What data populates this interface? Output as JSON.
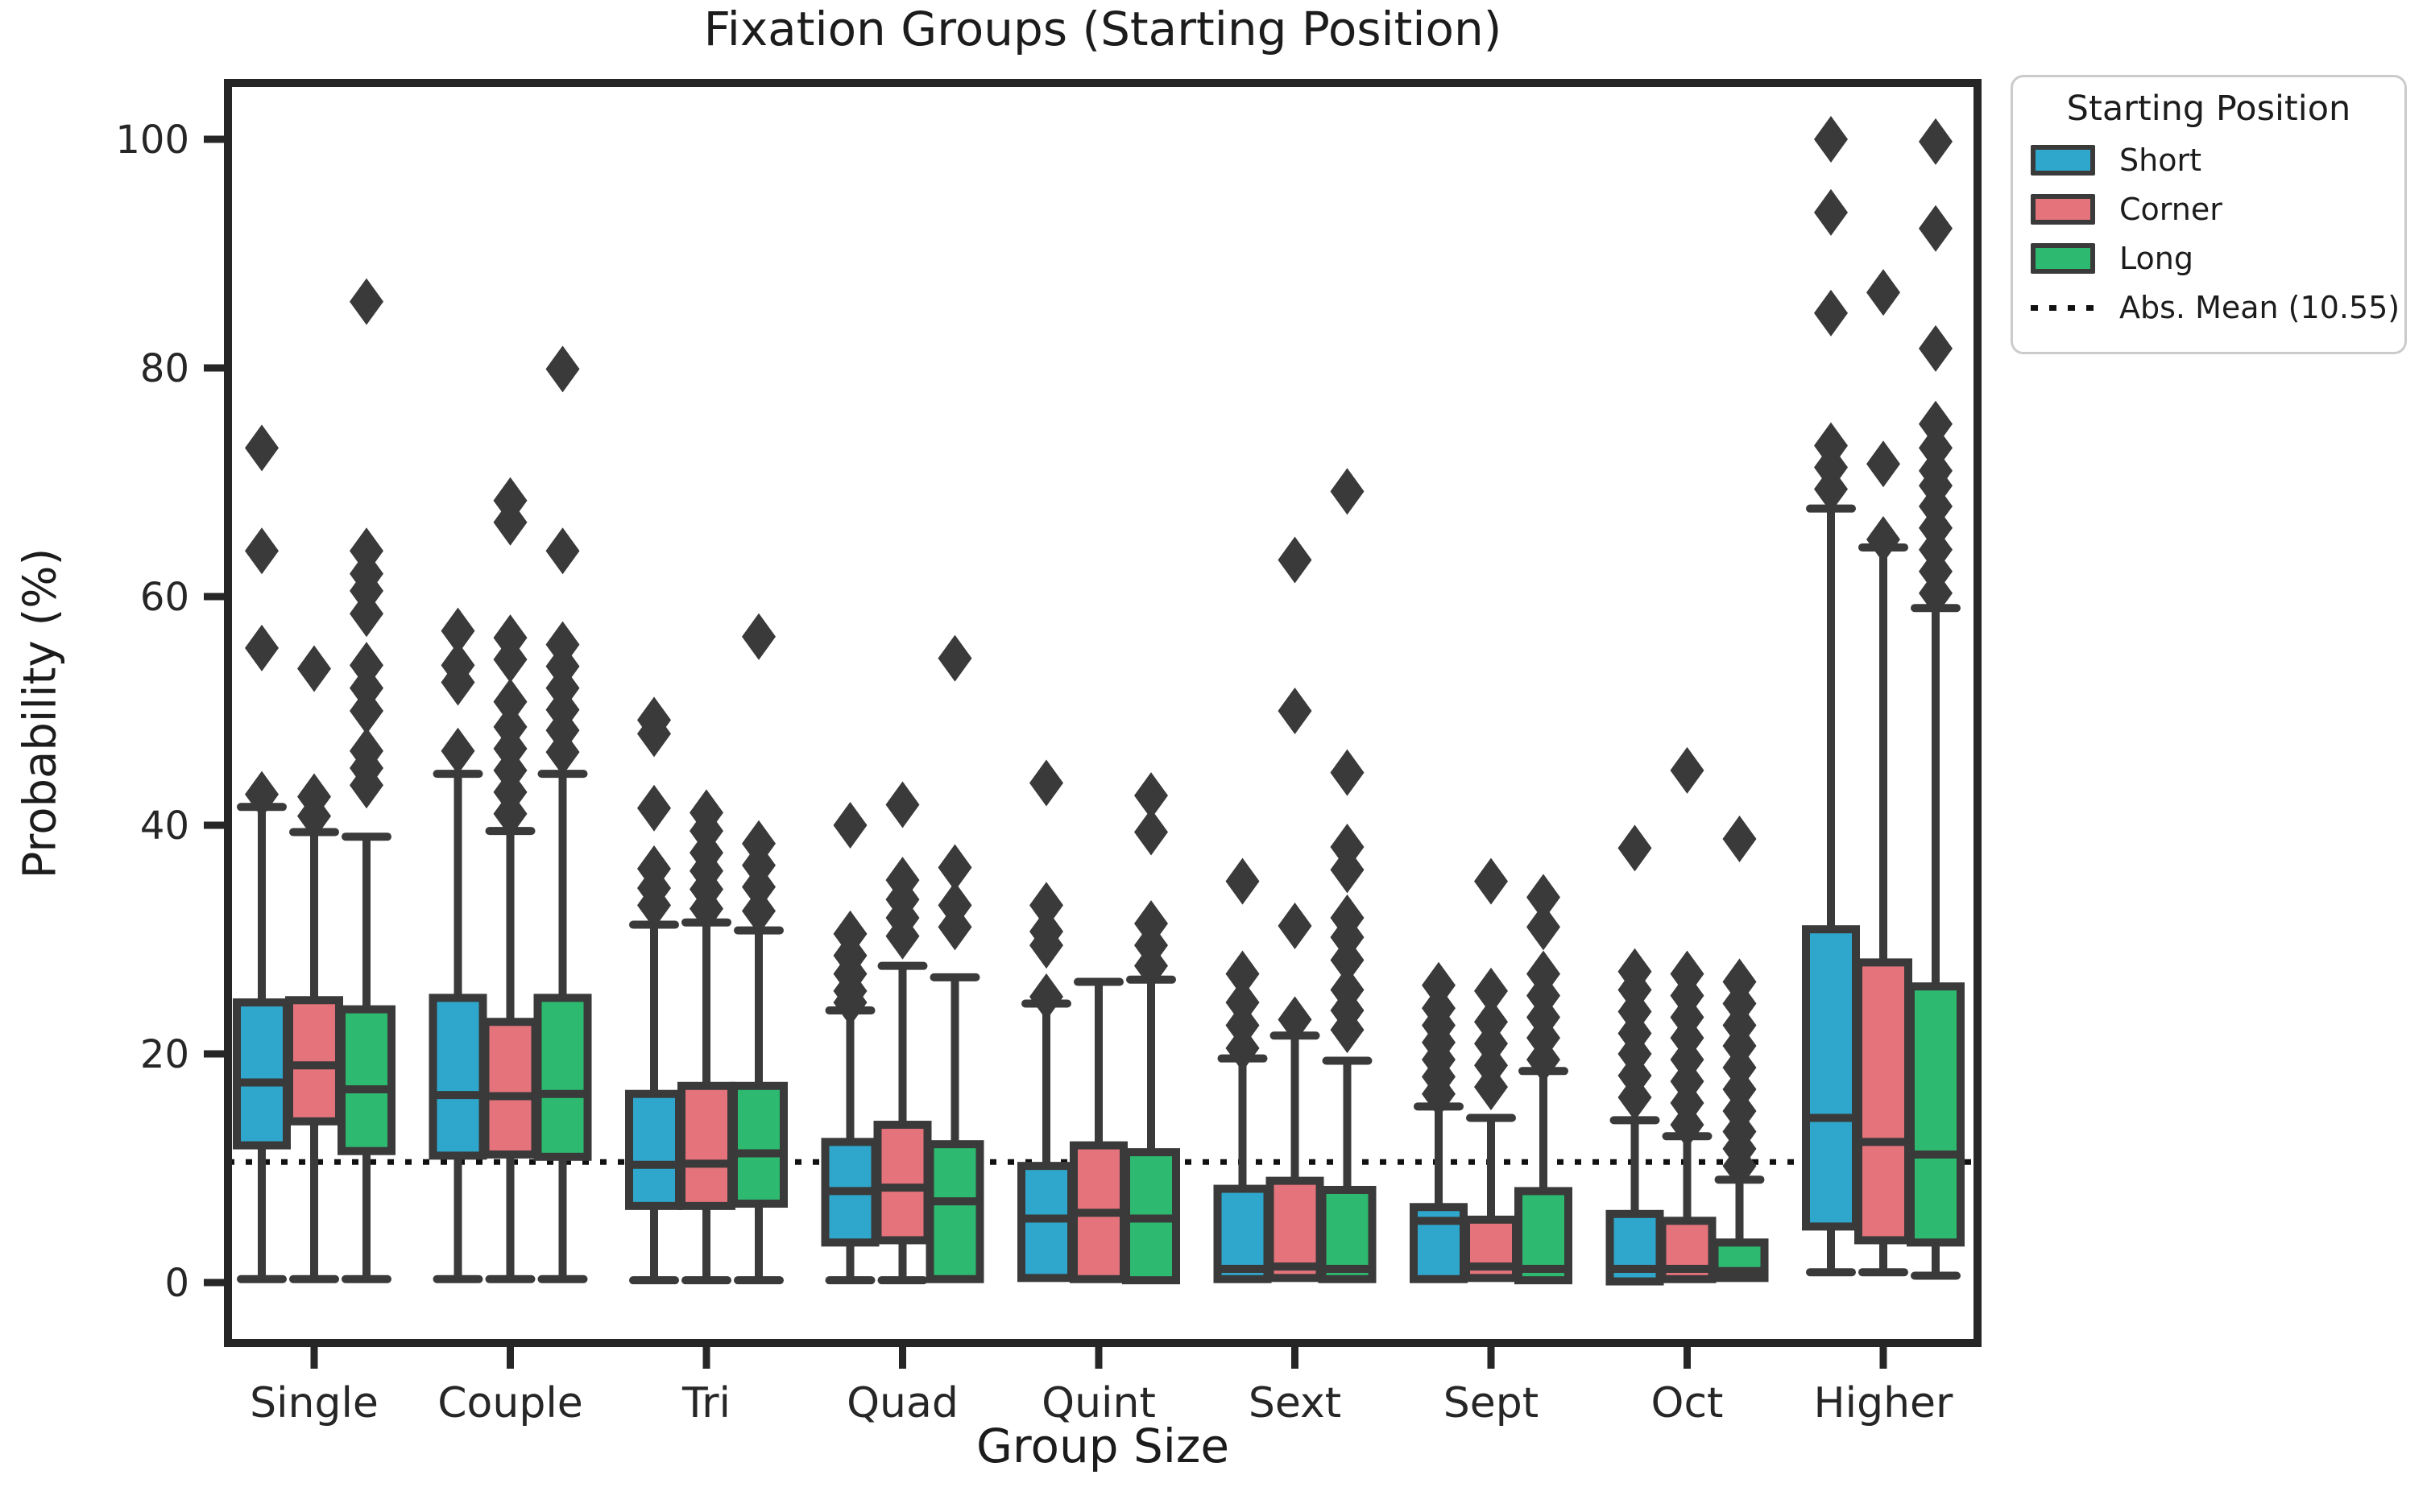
{
  "legend": {
    "title": "Starting Position",
    "entries": [
      {
        "label": "Short",
        "color": "#2FA7CC"
      },
      {
        "label": "Corner",
        "color": "#E4737C"
      },
      {
        "label": "Long",
        "color": "#2DB96F"
      }
    ],
    "mean": {
      "label": "Abs. Mean (10.55)"
    }
  },
  "chart_data": {
    "type": "box",
    "title": "Fixation Groups (Starting Position)",
    "xlabel": "Group Size",
    "ylabel": "Probability (%)",
    "categories": [
      "Single",
      "Couple",
      "Tri",
      "Quad",
      "Quint",
      "Sext",
      "Sept",
      "Oct",
      "Higher"
    ],
    "yticks": [
      0,
      20,
      40,
      60,
      80,
      100
    ],
    "ylim": [
      -5,
      105
    ],
    "grid": false,
    "legend_position": "upper right, outside axes",
    "mean_line": {
      "value": 10.55,
      "label": "Abs. Mean (10.55)",
      "style": "dotted",
      "color": "#111111"
    },
    "palette": {
      "short": "#2FA7CC",
      "corner": "#E4737C",
      "long": "#2DB96F",
      "box_border": "#3A3A3A",
      "spine": "#262626"
    },
    "series": [
      {
        "name": "Short",
        "color_key": "short",
        "stats": [
          {
            "lo": 0.3,
            "q1": 12.0,
            "med": 17.5,
            "q3": 24.5,
            "hi": 41.6,
            "out": [
              42.7,
              55.5,
              64.0,
              73.0
            ]
          },
          {
            "lo": 0.3,
            "q1": 11.1,
            "med": 16.4,
            "q3": 24.9,
            "hi": 44.5,
            "out": [
              46.5,
              52.5,
              54.0,
              57.0
            ]
          },
          {
            "lo": 0.2,
            "q1": 6.7,
            "med": 10.3,
            "q3": 16.5,
            "hi": 31.3,
            "out": [
              33.0,
              34.5,
              36.2,
              41.5,
              48.0,
              49.2
            ]
          },
          {
            "lo": 0.2,
            "q1": 3.5,
            "med": 8.0,
            "q3": 12.3,
            "hi": 23.8,
            "out": [
              24.5,
              25.5,
              27.0,
              28.6,
              30.5,
              40.0
            ]
          },
          {
            "lo": null,
            "q1": 0.4,
            "med": 5.6,
            "q3": 10.2,
            "hi": 24.4,
            "out": [
              25.0,
              29.5,
              30.7,
              33.0,
              43.7
            ]
          },
          {
            "lo": null,
            "q1": 0.3,
            "med": 1.2,
            "q3": 8.2,
            "hi": 19.6,
            "out": [
              20.5,
              22.5,
              24.5,
              27.0,
              35.1
            ]
          },
          {
            "lo": null,
            "q1": 0.3,
            "med": 5.4,
            "q3": 6.6,
            "hi": 15.4,
            "out": [
              16.5,
              18.0,
              19.5,
              21.0,
              22.5,
              24.0,
              26.0
            ]
          },
          {
            "lo": null,
            "q1": 0.1,
            "med": 1.2,
            "q3": 6.0,
            "hi": 14.2,
            "out": [
              16.2,
              18.1,
              20.0,
              21.8,
              23.7,
              25.6,
              27.2,
              38.0
            ]
          },
          {
            "lo": 0.9,
            "q1": 4.9,
            "med": 14.4,
            "q3": 30.9,
            "hi": 67.7,
            "out": [
              69.4,
              71.3,
              73.2,
              84.8,
              93.6,
              100.0
            ]
          }
        ]
      },
      {
        "name": "Corner",
        "color_key": "corner",
        "stats": [
          {
            "lo": 0.3,
            "q1": 14.1,
            "med": 19.0,
            "q3": 24.7,
            "hi": 39.4,
            "out": [
              40.8,
              42.5,
              53.7
            ]
          },
          {
            "lo": 0.3,
            "q1": 11.2,
            "med": 16.3,
            "q3": 22.8,
            "hi": 39.5,
            "out": [
              41.0,
              42.9,
              44.8,
              46.7,
              48.6,
              50.8,
              54.5,
              56.4,
              66.5,
              68.4
            ]
          },
          {
            "lo": 0.2,
            "q1": 6.7,
            "med": 10.4,
            "q3": 17.2,
            "hi": 31.5,
            "out": [
              32.7,
              34.4,
              36.0,
              37.6,
              39.5,
              41.1
            ]
          },
          {
            "lo": 0.2,
            "q1": 3.7,
            "med": 8.3,
            "q3": 13.8,
            "hi": 27.7,
            "out": [
              30.3,
              31.9,
              33.5,
              35.2,
              41.8
            ]
          },
          {
            "lo": null,
            "q1": 0.3,
            "med": 6.1,
            "q3": 12.0,
            "hi": 26.3,
            "out": []
          },
          {
            "lo": null,
            "q1": 0.4,
            "med": 1.4,
            "q3": 8.9,
            "hi": 21.6,
            "out": [
              23.0,
              31.2,
              50.0,
              63.2
            ]
          },
          {
            "lo": null,
            "q1": 0.4,
            "med": 1.4,
            "q3": 5.5,
            "hi": 14.4,
            "out": [
              17.1,
              19.0,
              20.9,
              22.8,
              25.5,
              35.1
            ]
          },
          {
            "lo": null,
            "q1": 0.3,
            "med": 1.2,
            "q3": 5.4,
            "hi": 12.8,
            "out": [
              13.8,
              15.7,
              17.6,
              19.5,
              21.4,
              23.2,
              25.1,
              27.0,
              44.8
            ]
          },
          {
            "lo": 0.9,
            "q1": 3.7,
            "med": 12.3,
            "q3": 28.0,
            "hi": 64.3,
            "out": [
              65.0,
              71.6,
              86.6
            ]
          }
        ]
      },
      {
        "name": "Long",
        "color_key": "long",
        "stats": [
          {
            "lo": 0.3,
            "q1": 11.5,
            "med": 16.9,
            "q3": 23.9,
            "hi": 39.0,
            "out": [
              43.5,
              45.0,
              46.5,
              50.0,
              52.0,
              54.0,
              58.5,
              60.5,
              62.0,
              64.0,
              85.8
            ]
          },
          {
            "lo": 0.3,
            "q1": 11.0,
            "med": 16.5,
            "q3": 24.9,
            "hi": 44.5,
            "out": [
              46.4,
              48.3,
              50.1,
              52.0,
              53.9,
              55.8,
              64.0,
              79.9
            ]
          },
          {
            "lo": 0.2,
            "q1": 6.9,
            "med": 11.3,
            "q3": 17.2,
            "hi": 30.8,
            "out": [
              32.5,
              34.6,
              36.5,
              38.4,
              56.5
            ]
          },
          {
            "lo": null,
            "q1": 0.3,
            "med": 7.1,
            "q3": 12.1,
            "hi": 26.7,
            "out": [
              31.1,
              33.0,
              36.3,
              54.6
            ]
          },
          {
            "lo": null,
            "q1": 0.2,
            "med": 5.6,
            "q3": 11.4,
            "hi": 26.5,
            "out": [
              27.7,
              29.5,
              31.4,
              39.4,
              42.6
            ]
          },
          {
            "lo": null,
            "q1": 0.3,
            "med": 1.2,
            "q3": 8.1,
            "hi": 19.4,
            "out": [
              22.1,
              23.8,
              25.6,
              28.2,
              30.2,
              31.9,
              36.1,
              38.1,
              44.6,
              69.2
            ]
          },
          {
            "lo": null,
            "q1": 0.2,
            "med": 1.2,
            "q3": 8.0,
            "hi": 18.5,
            "out": [
              19.5,
              21.4,
              23.2,
              25.1,
              27.0,
              31.1,
              33.7
            ]
          },
          {
            "lo": null,
            "q1": 0.4,
            "med": 1.0,
            "q3": 3.5,
            "hi": 9.0,
            "out": [
              10.2,
              11.7,
              13.2,
              15.0,
              16.9,
              18.8,
              20.7,
              22.5,
              24.4,
              26.3,
              38.8
            ]
          },
          {
            "lo": 0.6,
            "q1": 3.5,
            "med": 11.2,
            "q3": 25.9,
            "hi": 59.0,
            "out": [
              60.3,
              62.2,
              64.1,
              66.0,
              67.9,
              69.7,
              71.0,
              73.0,
              75.1,
              81.7,
              92.2,
              99.8
            ]
          }
        ]
      }
    ]
  }
}
